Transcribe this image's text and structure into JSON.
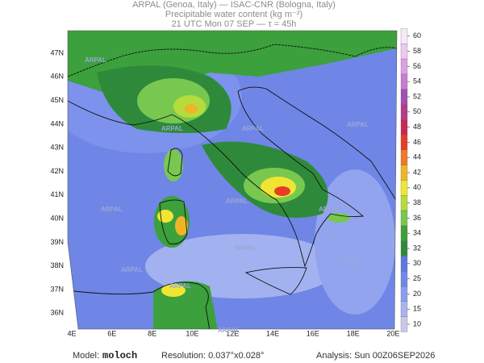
{
  "header": {
    "line1": "ARPAL (Genoa, Italy)  —  ISAC-CNR (Bologna, Italy)",
    "line2": "Precipitable water content (kg m⁻²)",
    "line3": "21 UTC Mon 07 SEP  —  τ = 45h"
  },
  "map": {
    "lat_labels": [
      "47N",
      "46N",
      "45N",
      "44N",
      "43N",
      "42N",
      "41N",
      "40N",
      "39N",
      "38N",
      "37N",
      "36N"
    ],
    "lon_labels": [
      "4E",
      "6E",
      "8E",
      "10E",
      "12E",
      "14E",
      "16E",
      "18E",
      "20E"
    ],
    "watermark": "ARPAL"
  },
  "colorbar": {
    "levels": [
      10,
      15,
      20,
      25,
      30,
      32,
      34,
      36,
      38,
      40,
      42,
      44,
      46,
      48,
      50,
      52,
      54,
      56,
      58,
      60
    ],
    "colors": [
      "#c8c8e8",
      "#a8b4f0",
      "#8a9ef0",
      "#7088e8",
      "#5a78e0",
      "#2e8a3a",
      "#3ca03c",
      "#78c850",
      "#b4dc3c",
      "#f0e632",
      "#f0b428",
      "#f07828",
      "#e63c28",
      "#c82850",
      "#b43c8c",
      "#a050b4",
      "#c87cd2",
      "#dca0e6",
      "#ecc8f0",
      "#f8e8f8"
    ]
  },
  "footer": {
    "model_label": "Model:",
    "model": "moloch",
    "resolution": "Resolution: 0.037°x0.028°",
    "analysis": "Analysis: Sun 00Z06SEP2026"
  }
}
